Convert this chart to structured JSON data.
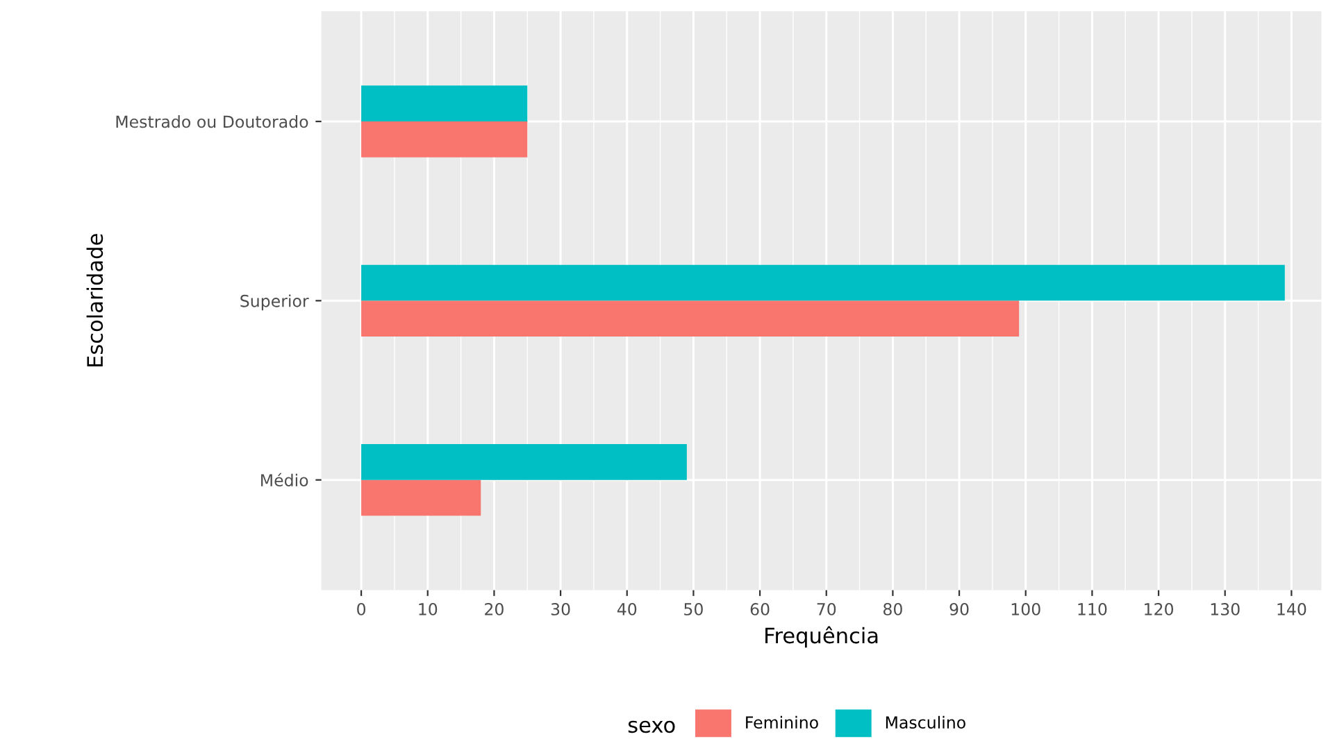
{
  "chart_data": {
    "type": "bar",
    "orientation": "horizontal",
    "xlabel": "Frequência",
    "ylabel": "Escolaridade",
    "legend_title": "sexo",
    "legend": "bottom",
    "grid": true,
    "categories": [
      "Mestrado ou Doutorado",
      "Superior",
      "Médio"
    ],
    "series": [
      {
        "name": "Feminino",
        "color": "#f8766d",
        "values": [
          25,
          99,
          18
        ]
      },
      {
        "name": "Masculino",
        "color": "#00bfc4",
        "values": [
          25,
          139,
          49
        ]
      }
    ],
    "xlim": [
      -6,
      144.5
    ],
    "xticks": [
      0,
      10,
      20,
      30,
      40,
      50,
      60,
      70,
      80,
      90,
      100,
      110,
      120,
      130,
      140
    ]
  }
}
